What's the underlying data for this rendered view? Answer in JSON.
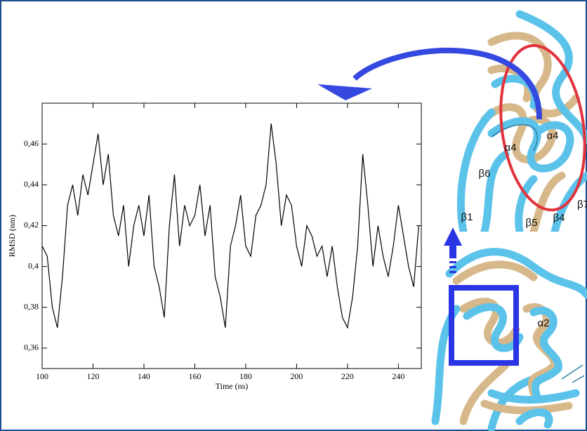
{
  "chart_data": {
    "type": "line",
    "x_label": "Time (ns)",
    "y_label": "RMSD (nm)",
    "x": [
      100,
      102,
      104,
      106,
      108,
      110,
      112,
      114,
      116,
      118,
      120,
      122,
      124,
      126,
      128,
      130,
      132,
      134,
      136,
      138,
      140,
      142,
      144,
      146,
      148,
      150,
      152,
      154,
      156,
      158,
      160,
      162,
      164,
      166,
      168,
      170,
      172,
      174,
      176,
      178,
      180,
      182,
      184,
      186,
      188,
      190,
      192,
      194,
      196,
      198,
      200,
      202,
      204,
      206,
      208,
      210,
      212,
      214,
      216,
      218,
      220,
      222,
      224,
      226,
      228,
      230,
      232,
      234,
      236,
      238,
      240,
      242,
      244,
      246,
      248
    ],
    "values": [
      0.41,
      0.405,
      0.38,
      0.37,
      0.395,
      0.43,
      0.44,
      0.425,
      0.445,
      0.435,
      0.45,
      0.465,
      0.44,
      0.455,
      0.425,
      0.415,
      0.43,
      0.4,
      0.42,
      0.43,
      0.415,
      0.435,
      0.4,
      0.39,
      0.375,
      0.42,
      0.445,
      0.41,
      0.43,
      0.42,
      0.425,
      0.44,
      0.415,
      0.43,
      0.395,
      0.385,
      0.37,
      0.41,
      0.42,
      0.435,
      0.41,
      0.405,
      0.425,
      0.43,
      0.44,
      0.47,
      0.45,
      0.42,
      0.435,
      0.43,
      0.41,
      0.4,
      0.42,
      0.415,
      0.405,
      0.41,
      0.395,
      0.41,
      0.39,
      0.375,
      0.37,
      0.385,
      0.41,
      0.455,
      0.43,
      0.4,
      0.42,
      0.405,
      0.395,
      0.41,
      0.43,
      0.415,
      0.4,
      0.39,
      0.42
    ],
    "color": "#000000",
    "xlim": [
      100,
      249
    ],
    "xticks": [
      100,
      120,
      140,
      160,
      180,
      200,
      220,
      240
    ],
    "ylim": [
      0.35,
      0.48
    ],
    "yticks": [
      {
        "value": 0.36,
        "label": "0,36"
      },
      {
        "value": 0.38,
        "label": "0,38"
      },
      {
        "value": 0.4,
        "label": "0,4"
      },
      {
        "value": 0.42,
        "label": "0,42"
      },
      {
        "value": 0.44,
        "label": "0,44"
      },
      {
        "value": 0.46,
        "label": "0,46"
      }
    ]
  },
  "structure_labels": [
    "α4",
    "α4",
    "β6",
    "β1",
    "β5",
    "β4",
    "β7",
    "α2"
  ]
}
